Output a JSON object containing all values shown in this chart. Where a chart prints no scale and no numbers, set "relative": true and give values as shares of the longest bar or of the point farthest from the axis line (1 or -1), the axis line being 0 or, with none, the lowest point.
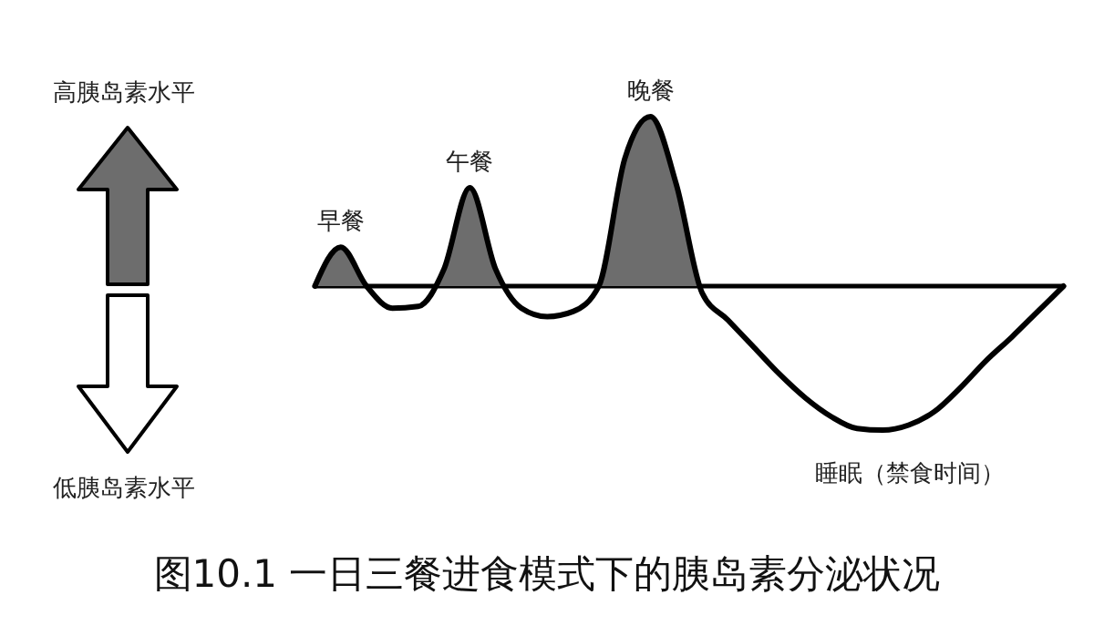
{
  "chart_data": {
    "type": "area",
    "title": "图10.1 一日三餐进食模式下的胰岛素分泌状况",
    "relative": true,
    "categories": [
      null,
      null,
      null,
      null,
      null,
      null,
      null,
      null,
      null,
      null,
      null,
      null,
      null,
      null,
      null,
      null,
      null,
      null,
      null,
      null,
      null,
      null,
      null,
      null,
      null,
      null,
      null,
      null,
      null,
      null
    ],
    "series": [
      {
        "color": "#6d6d6d",
        "values": [
          0,
          0.23,
          0.0,
          -0.13,
          -0.12,
          0.1,
          0.58,
          0.1,
          -0.13,
          -0.18,
          -0.15,
          0,
          0.75,
          1,
          0.6,
          -0.04,
          -0.2,
          -0.36,
          -0.52,
          -0.66,
          -0.77,
          -0.84,
          -0.85,
          -0.82,
          -0.74,
          -0.6,
          -0.44,
          -0.3,
          -0.15,
          0
        ]
      }
    ],
    "annotations": [
      "早餐",
      "午餐",
      "晚餐",
      "睡眠（禁食时间）",
      "高胰岛素水平",
      "低胰岛素水平"
    ]
  }
}
